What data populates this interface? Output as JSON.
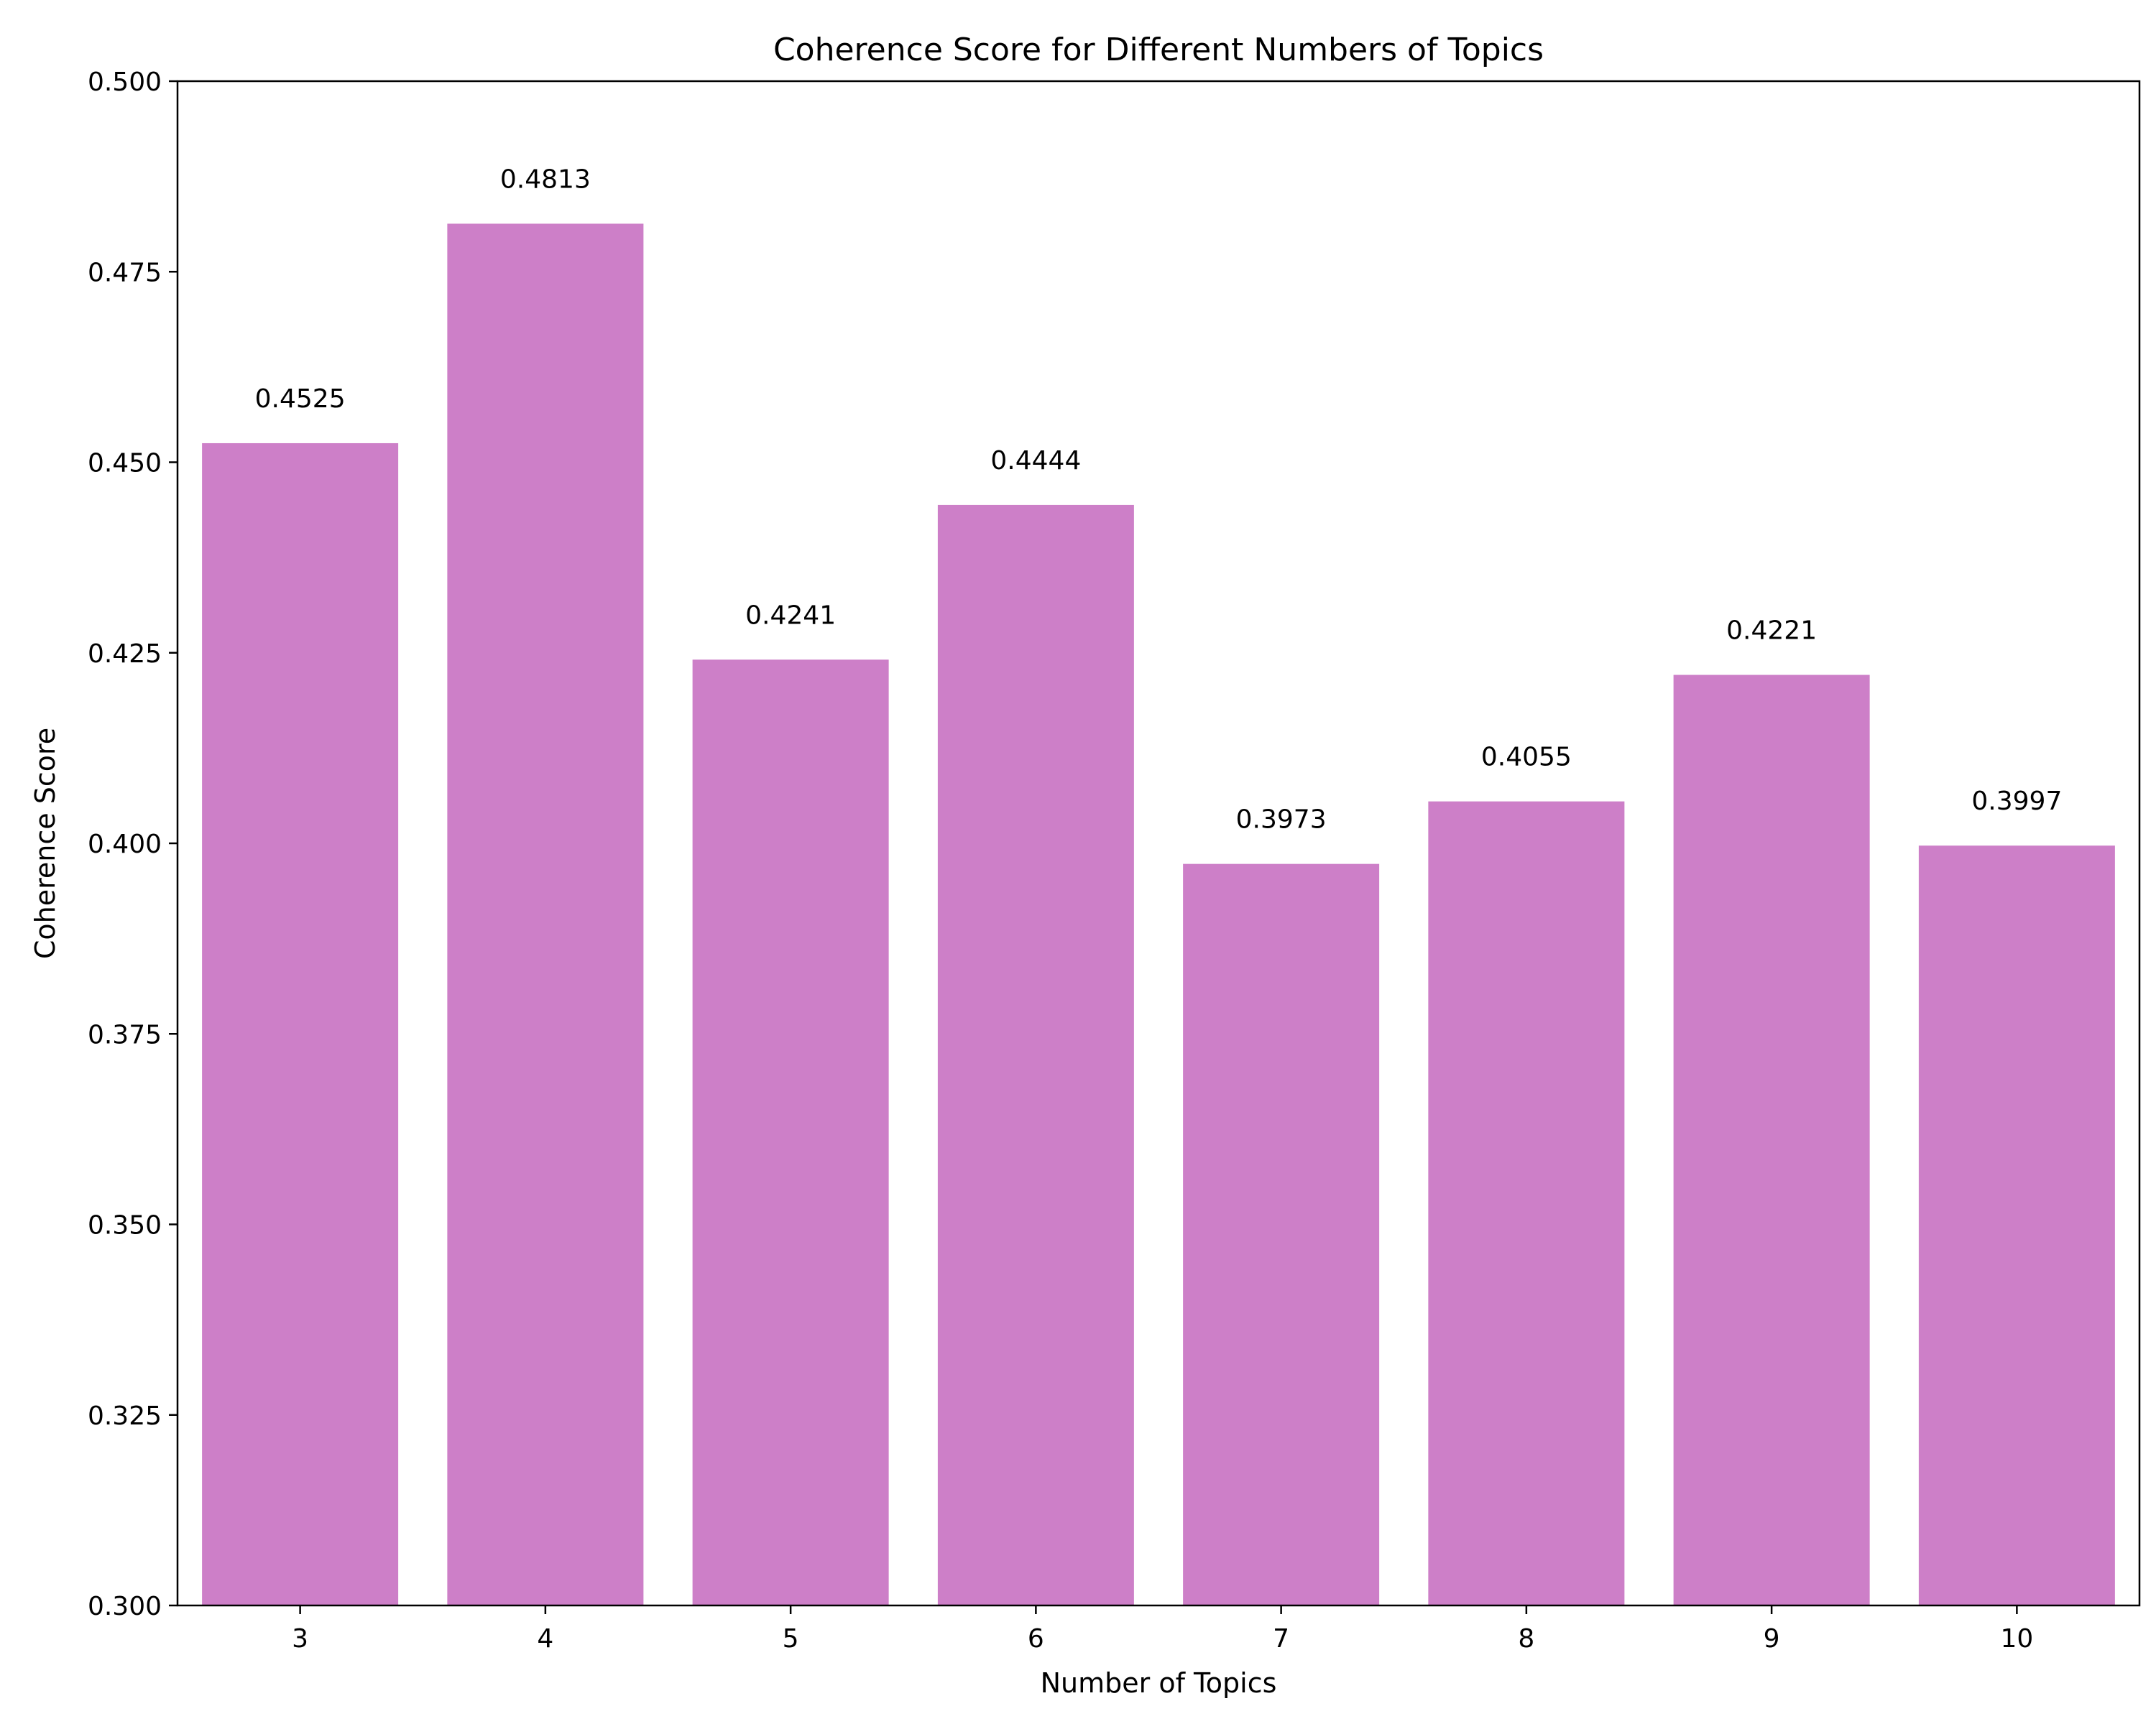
{
  "chart_data": {
    "type": "bar",
    "title": "Coherence Score for Different Numbers of Topics",
    "xlabel": "Number of Topics",
    "ylabel": "Coherence Score",
    "categories": [
      "3",
      "4",
      "5",
      "6",
      "7",
      "8",
      "9",
      "10"
    ],
    "values": [
      0.4525,
      0.4813,
      0.4241,
      0.4444,
      0.3973,
      0.4055,
      0.4221,
      0.3997
    ],
    "data_labels": [
      "0.4525",
      "0.4813",
      "0.4241",
      "0.4444",
      "0.3973",
      "0.4055",
      "0.4221",
      "0.3997"
    ],
    "ylim": [
      0.3,
      0.5
    ],
    "yticks": [
      0.3,
      0.325,
      0.35,
      0.375,
      0.4,
      0.425,
      0.45,
      0.475,
      0.5
    ],
    "ytick_labels": [
      "0.300",
      "0.325",
      "0.350",
      "0.375",
      "0.400",
      "0.425",
      "0.450",
      "0.475",
      "0.500"
    ],
    "grid": false,
    "bar_color": "#cd7fc8"
  }
}
